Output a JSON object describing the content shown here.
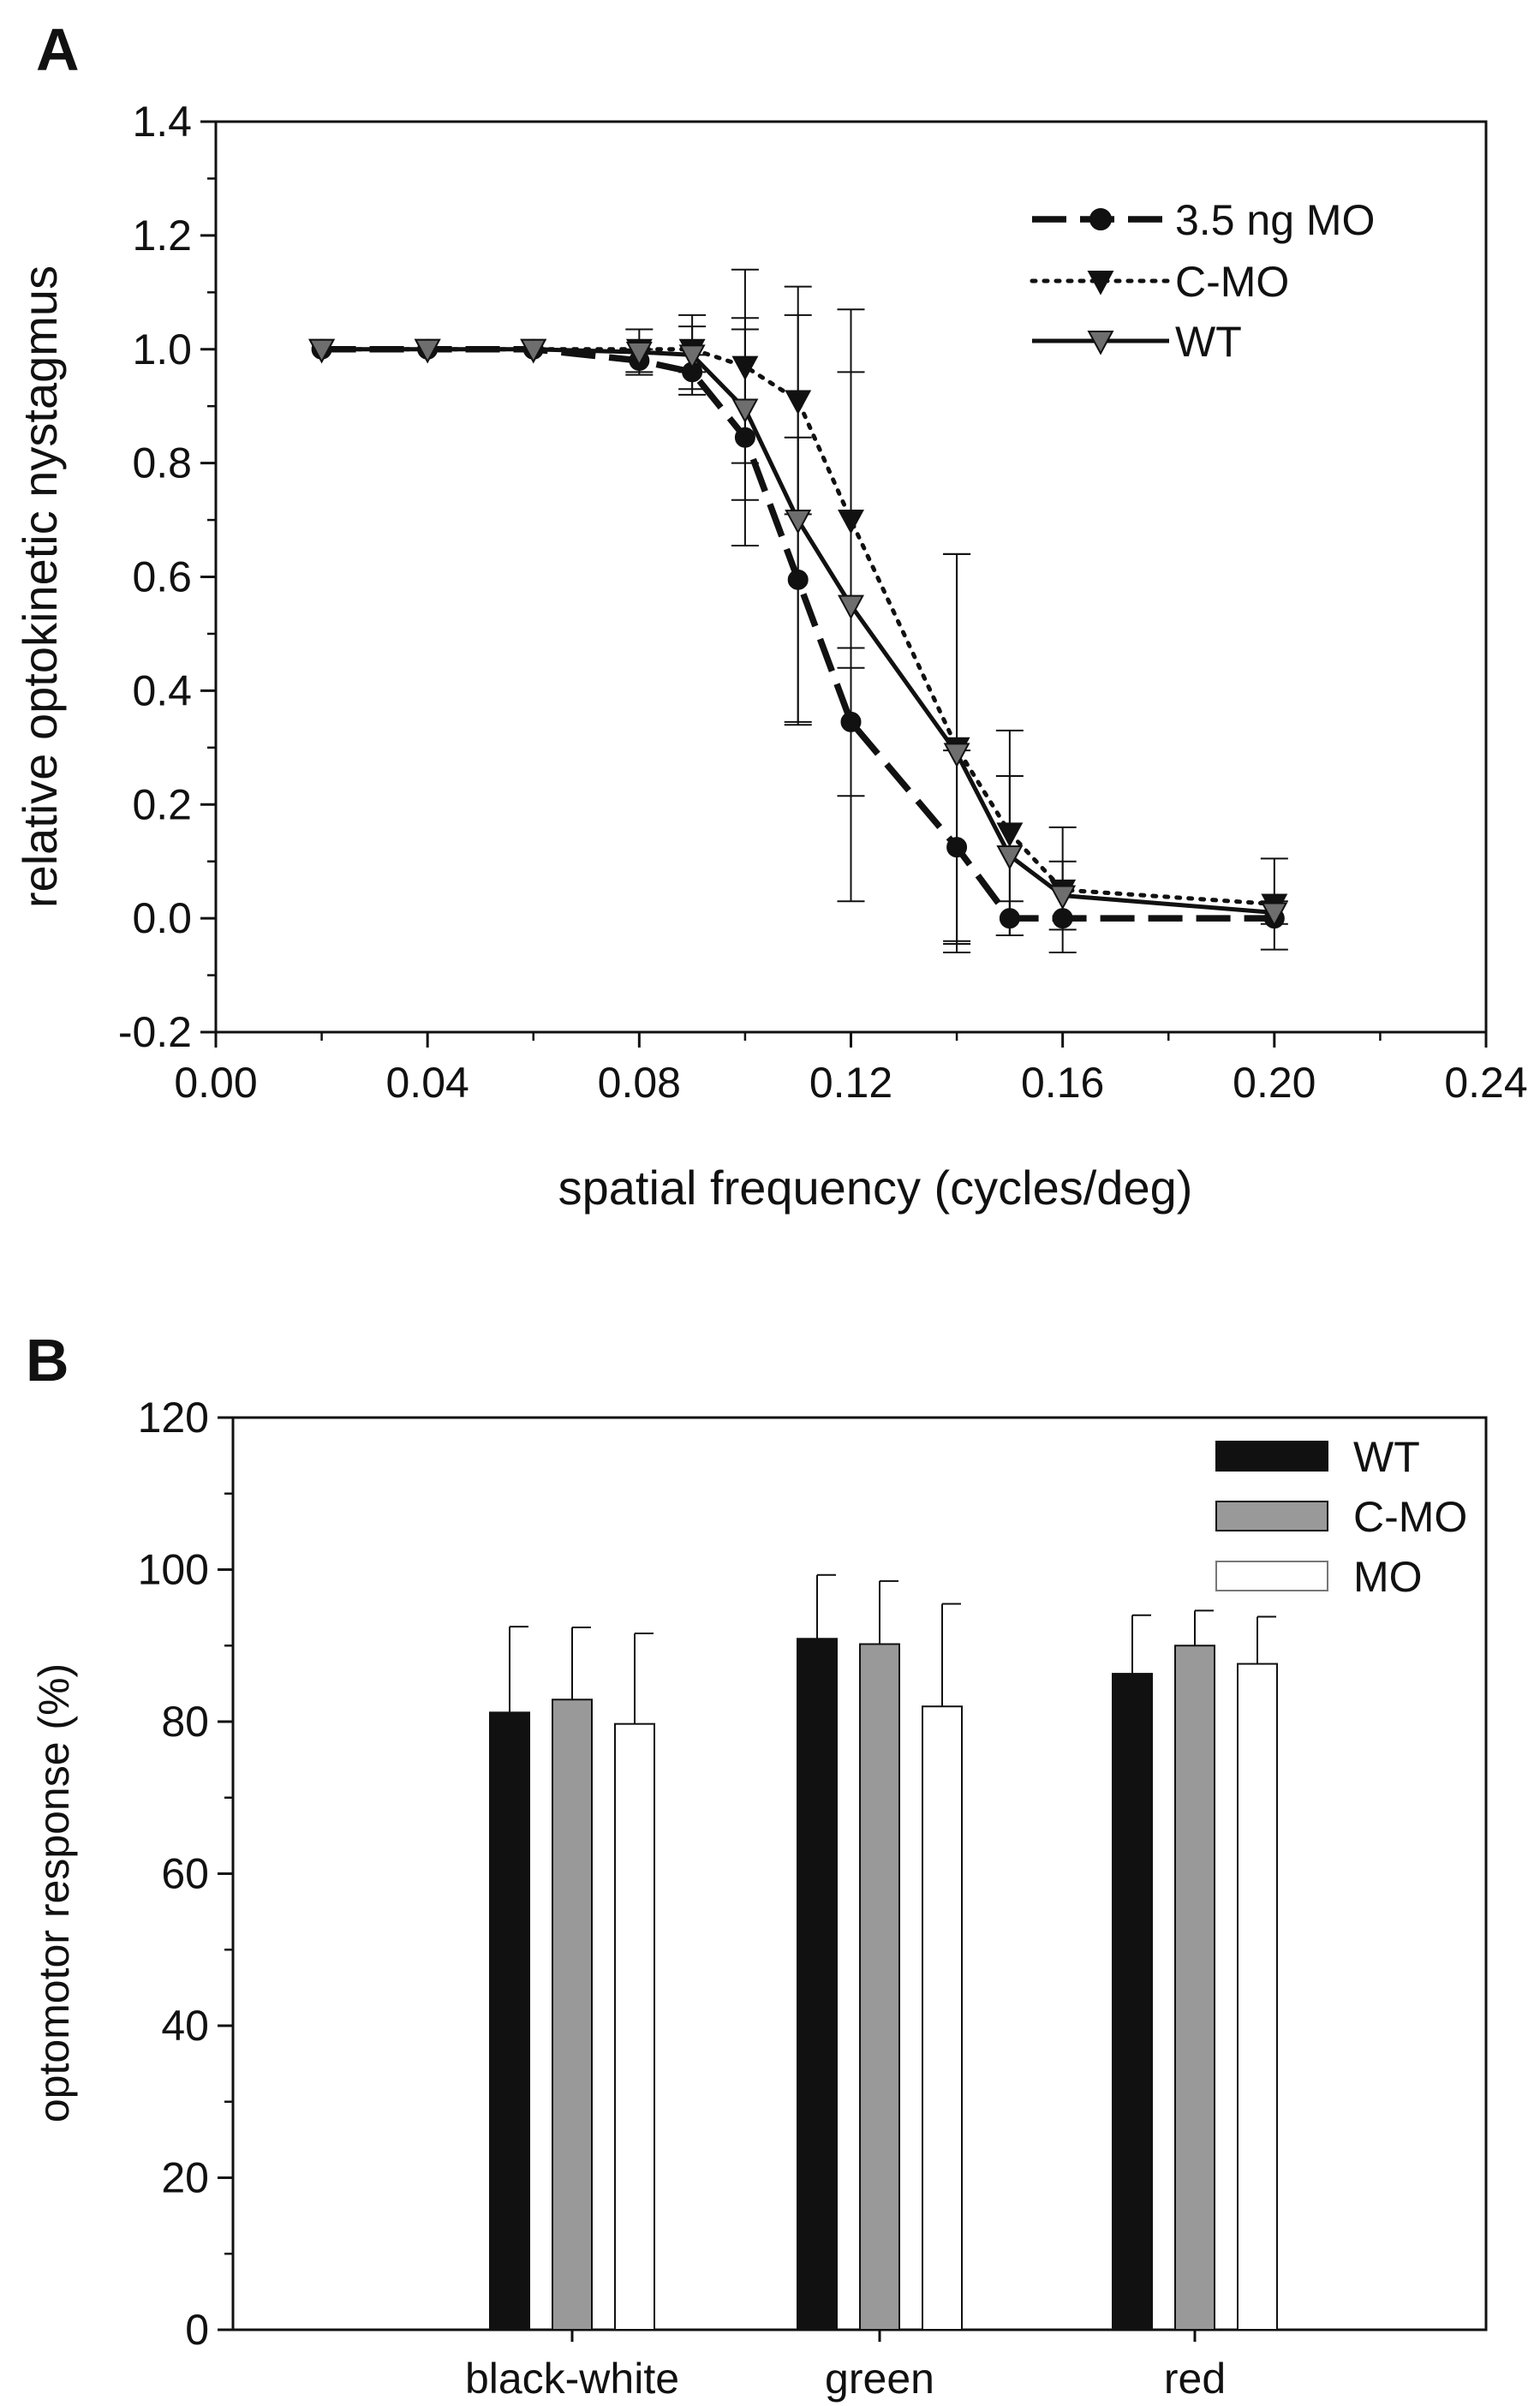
{
  "colors": {
    "axis": "#111111",
    "wt_series_a": "#111111",
    "wt_marker_a": "#6e6e6e",
    "bar_wt": "#111111",
    "bar_cmo": "#999999",
    "bar_mo": "#ffffff"
  },
  "chart_data": [
    {
      "panel": "A",
      "type": "line",
      "title": "",
      "xlabel": "spatial frequency (cycles/deg)",
      "ylabel": "relative optokinetic nystagmus",
      "xlim": [
        0.0,
        0.24
      ],
      "ylim": [
        -0.2,
        1.4
      ],
      "xticks": [
        "0.00",
        "0.04",
        "0.08",
        "0.12",
        "0.16",
        "0.20",
        "0.24"
      ],
      "xtick_values": [
        0.0,
        0.04,
        0.08,
        0.12,
        0.16,
        0.2,
        0.24
      ],
      "yticks": [
        "-0.2",
        "0.0",
        "0.2",
        "0.4",
        "0.6",
        "0.8",
        "1.0",
        "1.2",
        "1.4"
      ],
      "ytick_values": [
        -0.2,
        0.0,
        0.2,
        0.4,
        0.6,
        0.8,
        1.0,
        1.2,
        1.4
      ],
      "grid": false,
      "legend_position": "top-right",
      "series": [
        {
          "name": "3.5 ng MO",
          "marker": "circle",
          "line": "dashed",
          "x": [
            0.02,
            0.04,
            0.06,
            0.08,
            0.09,
            0.1,
            0.11,
            0.12,
            0.14,
            0.15,
            0.16,
            0.2
          ],
          "y": [
            1.0,
            1.0,
            1.0,
            0.98,
            0.96,
            0.845,
            0.595,
            0.345,
            0.125,
            0.0,
            0.0,
            0.0
          ],
          "err": [
            0.0,
            0.0,
            0.0,
            0.02,
            0.03,
            0.19,
            0.25,
            0.13,
            0.17,
            0.03,
            0.0,
            0.0
          ]
        },
        {
          "name": "C-MO",
          "marker": "triangle-down",
          "line": "dotted",
          "x": [
            0.02,
            0.04,
            0.06,
            0.08,
            0.09,
            0.1,
            0.11,
            0.12,
            0.14,
            0.15,
            0.16,
            0.2
          ],
          "y": [
            1.0,
            1.0,
            1.0,
            1.0,
            1.0,
            0.97,
            0.91,
            0.7,
            0.3,
            0.15,
            0.05,
            0.025
          ],
          "err": [
            0.0,
            0.0,
            0.0,
            0.0,
            0.04,
            0.17,
            0.2,
            0.26,
            0.34,
            0.18,
            0.11,
            0.08
          ]
        },
        {
          "name": "WT",
          "marker": "triangle-down",
          "line": "solid",
          "x": [
            0.02,
            0.04,
            0.06,
            0.08,
            0.09,
            0.1,
            0.11,
            0.12,
            0.14,
            0.15,
            0.16,
            0.2
          ],
          "y": [
            1.0,
            1.0,
            1.0,
            0.995,
            0.99,
            0.895,
            0.7,
            0.55,
            0.29,
            0.11,
            0.04,
            0.01
          ],
          "err": [
            0.0,
            0.0,
            0.0,
            0.04,
            0.07,
            0.16,
            0.36,
            0.52,
            0.35,
            0.14,
            0.06,
            0.02
          ]
        }
      ]
    },
    {
      "panel": "B",
      "type": "bar",
      "title": "",
      "xlabel": "",
      "ylabel": "optomotor response (%)",
      "ylim": [
        0,
        120
      ],
      "yticks": [
        "0",
        "20",
        "40",
        "60",
        "80",
        "100",
        "120"
      ],
      "ytick_values": [
        0,
        20,
        40,
        60,
        80,
        100,
        120
      ],
      "grid": false,
      "legend_position": "top-right",
      "categories": [
        "black-white",
        "green",
        "red"
      ],
      "series": [
        {
          "name": "WT",
          "values": [
            81.2,
            90.9,
            86.3
          ],
          "err": [
            11.3,
            8.4,
            7.7
          ]
        },
        {
          "name": "C-MO",
          "values": [
            82.9,
            90.2,
            90.0
          ],
          "err": [
            9.5,
            8.3,
            4.6
          ]
        },
        {
          "name": "MO",
          "values": [
            79.7,
            82.0,
            87.6
          ],
          "err": [
            11.9,
            13.5,
            6.2
          ]
        }
      ]
    }
  ]
}
